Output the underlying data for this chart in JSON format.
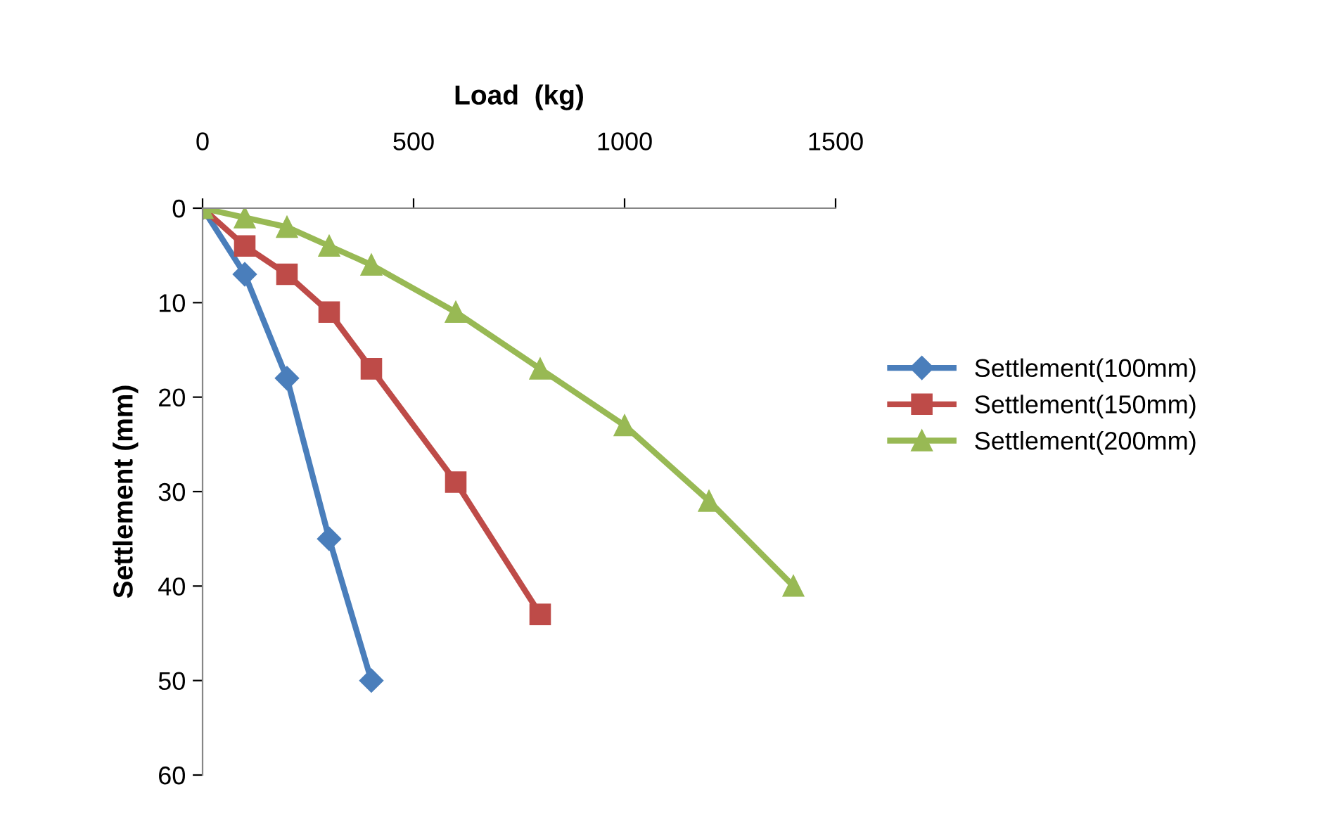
{
  "chart_data": {
    "type": "line",
    "xlabel": "Load  (kg)",
    "ylabel": "Settlement (mm)",
    "xlim": [
      0,
      1500
    ],
    "xticks": [
      0,
      500,
      1000,
      1500
    ],
    "ylim": [
      60,
      0
    ],
    "yticks": [
      0,
      10,
      20,
      30,
      40,
      50,
      60
    ],
    "grid": false,
    "legend": "right",
    "line_style": "solid",
    "series": [
      {
        "name": "Settlement(100mm)",
        "color": "#4a7ebb",
        "marker": "diamond",
        "x": [
          0,
          100,
          200,
          300,
          400
        ],
        "values": [
          0,
          7,
          18,
          35,
          50
        ]
      },
      {
        "name": "Settlement(150mm)",
        "color": "#be4b48",
        "marker": "square",
        "x": [
          0,
          100,
          200,
          300,
          400,
          600,
          800
        ],
        "values": [
          0,
          4,
          7,
          11,
          17,
          29,
          43
        ]
      },
      {
        "name": "Settlement(200mm)",
        "color": "#98b954",
        "marker": "triangle",
        "x": [
          0,
          100,
          200,
          300,
          400,
          600,
          800,
          1000,
          1200,
          1400
        ],
        "values": [
          0,
          1,
          2,
          4,
          6,
          11,
          17,
          23,
          31,
          40
        ]
      }
    ]
  }
}
